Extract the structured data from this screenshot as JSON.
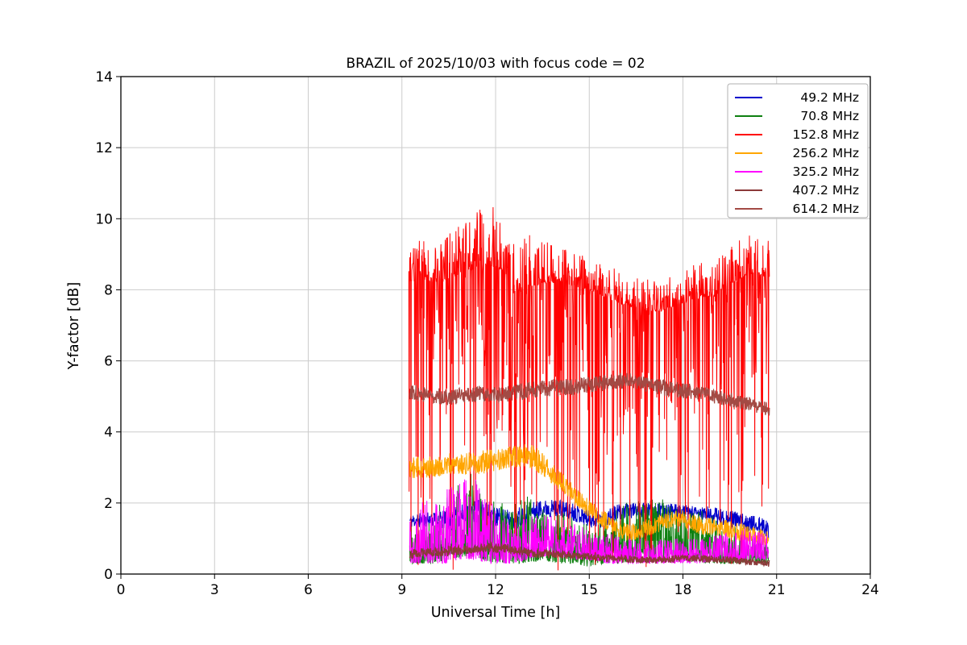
{
  "figure": {
    "background": "#ffffff"
  },
  "chart_data": {
    "type": "line",
    "title": "BRAZIL of 2025/10/03 with focus code = 02",
    "xlabel": "Universal Time [h]",
    "ylabel": "Y-factor [dB]",
    "xlim": [
      0,
      24
    ],
    "ylim": [
      0,
      14
    ],
    "xticks": [
      0,
      3,
      6,
      9,
      12,
      15,
      18,
      21,
      24
    ],
    "yticks": [
      0,
      2,
      4,
      6,
      8,
      10,
      12,
      14
    ],
    "grid": true,
    "grid_color": "#cccccc",
    "legend_position": "upper right",
    "series": [
      {
        "name": "49.2 MHz",
        "color": "#0000cc",
        "x_start": 9.25,
        "x_end": 20.75,
        "step": 0.01,
        "seed": 11,
        "bias": 1.0,
        "spike_prob": 0,
        "spike_max": 0,
        "mid_prob": 0,
        "mid_depth": 0,
        "width": 1.0,
        "envelope": [
          [
            9.3,
            1.3,
            1.7
          ],
          [
            10,
            1.3,
            1.75
          ],
          [
            10.5,
            1.2,
            1.8
          ],
          [
            11,
            1.4,
            2.0
          ],
          [
            11.5,
            1.5,
            2.1
          ],
          [
            12,
            1.3,
            1.9
          ],
          [
            12.5,
            1.2,
            1.8
          ],
          [
            13,
            1.4,
            2.0
          ],
          [
            13.5,
            1.6,
            2.1
          ],
          [
            14,
            1.6,
            2.1
          ],
          [
            14.5,
            1.5,
            2.0
          ],
          [
            15,
            1.3,
            1.8
          ],
          [
            15.5,
            1.3,
            1.8
          ],
          [
            16,
            1.5,
            2.0
          ],
          [
            16.5,
            1.6,
            2.0
          ],
          [
            17,
            1.6,
            2.0
          ],
          [
            17.5,
            1.5,
            2.0
          ],
          [
            18,
            1.5,
            1.95
          ],
          [
            18.5,
            1.5,
            1.9
          ],
          [
            19,
            1.4,
            1.9
          ],
          [
            19.5,
            1.3,
            1.8
          ],
          [
            20,
            1.2,
            1.7
          ],
          [
            20.5,
            1.1,
            1.6
          ],
          [
            20.75,
            1.0,
            1.5
          ]
        ]
      },
      {
        "name": "70.8 MHz",
        "color": "#0e8010",
        "x_start": 9.25,
        "x_end": 20.75,
        "step": 0.01,
        "seed": 22,
        "bias": 2.0,
        "spike_prob": 0,
        "spike_max": 0,
        "mid_prob": 0,
        "mid_depth": 0,
        "width": 1.0,
        "envelope": [
          [
            9.3,
            0.3,
            1.6
          ],
          [
            10,
            0.3,
            1.8
          ],
          [
            10.5,
            0.4,
            2.2
          ],
          [
            11,
            0.5,
            2.8
          ],
          [
            11.3,
            0.5,
            2.9
          ],
          [
            11.6,
            0.4,
            2.6
          ],
          [
            12,
            0.3,
            2.2
          ],
          [
            12.5,
            0.3,
            2.0
          ],
          [
            13,
            0.3,
            2.2
          ],
          [
            13.5,
            0.4,
            2.0
          ],
          [
            14,
            0.3,
            1.8
          ],
          [
            14.5,
            0.3,
            1.6
          ],
          [
            15,
            0.2,
            1.4
          ],
          [
            15.5,
            0.3,
            1.6
          ],
          [
            16,
            0.3,
            2.0
          ],
          [
            16.5,
            0.4,
            2.2
          ],
          [
            17,
            0.4,
            2.2
          ],
          [
            17.5,
            0.4,
            2.2
          ],
          [
            18,
            0.4,
            2.1
          ],
          [
            18.5,
            0.3,
            1.9
          ],
          [
            19,
            0.3,
            1.6
          ],
          [
            19.5,
            0.3,
            1.4
          ],
          [
            20,
            0.3,
            1.2
          ],
          [
            20.5,
            0.3,
            1.0
          ],
          [
            20.75,
            0.3,
            0.9
          ]
        ]
      },
      {
        "name": "152.8 MHz",
        "color": "#ff0000",
        "x_start": 9.22,
        "x_end": 20.78,
        "step": 0.01,
        "seed": 33,
        "bias": 2.2,
        "spike_prob": 0.13,
        "spike_max": 5.2,
        "mid_prob": 0.22,
        "mid_depth": 3.2,
        "width": 1.0,
        "envelope": [
          [
            9.3,
            8.2,
            9.4
          ],
          [
            9.6,
            8.3,
            9.5
          ],
          [
            10,
            8.2,
            9.5
          ],
          [
            10.5,
            8.3,
            9.6
          ],
          [
            11,
            8.5,
            9.9
          ],
          [
            11.5,
            8.6,
            10.3
          ],
          [
            11.8,
            8.7,
            10.5
          ],
          [
            12,
            8.6,
            10.4
          ],
          [
            12.3,
            8.5,
            10.0
          ],
          [
            12.6,
            7.8,
            9.7
          ],
          [
            13,
            8.0,
            9.6
          ],
          [
            13.5,
            8.2,
            9.4
          ],
          [
            14,
            8.2,
            9.2
          ],
          [
            14.5,
            8.1,
            9.1
          ],
          [
            15,
            8.0,
            9.0
          ],
          [
            15.5,
            7.8,
            8.8
          ],
          [
            16,
            7.6,
            8.5
          ],
          [
            16.5,
            7.5,
            8.4
          ],
          [
            17,
            7.4,
            8.3
          ],
          [
            17.3,
            7.4,
            8.2
          ],
          [
            17.6,
            7.5,
            8.4
          ],
          [
            18,
            7.6,
            8.6
          ],
          [
            18.5,
            7.8,
            8.8
          ],
          [
            19,
            7.8,
            8.8
          ],
          [
            19.3,
            8.0,
            9.0
          ],
          [
            19.6,
            8.2,
            9.3
          ],
          [
            20,
            8.4,
            9.5
          ],
          [
            20.3,
            8.5,
            9.6
          ],
          [
            20.5,
            8.4,
            9.4
          ],
          [
            20.78,
            8.3,
            9.4
          ]
        ]
      },
      {
        "name": "256.2 MHz",
        "color": "#ffa500",
        "x_start": 9.25,
        "x_end": 20.75,
        "step": 0.01,
        "seed": 44,
        "bias": 1.2,
        "spike_prob": 0,
        "spike_max": 0,
        "mid_prob": 0,
        "mid_depth": 0,
        "width": 1.0,
        "envelope": [
          [
            9.3,
            2.7,
            3.3
          ],
          [
            10,
            2.7,
            3.3
          ],
          [
            10.5,
            2.8,
            3.4
          ],
          [
            11,
            2.8,
            3.4
          ],
          [
            11.5,
            2.8,
            3.5
          ],
          [
            12,
            2.9,
            3.5
          ],
          [
            12.5,
            3.0,
            3.6
          ],
          [
            13,
            3.0,
            3.7
          ],
          [
            13.3,
            2.9,
            3.6
          ],
          [
            13.6,
            2.7,
            3.3
          ],
          [
            14,
            2.4,
            3.0
          ],
          [
            14.3,
            2.2,
            2.7
          ],
          [
            14.6,
            1.9,
            2.4
          ],
          [
            15,
            1.6,
            2.1
          ],
          [
            15.3,
            1.4,
            1.9
          ],
          [
            15.6,
            1.2,
            1.7
          ],
          [
            16,
            1.0,
            1.5
          ],
          [
            16.3,
            0.9,
            1.4
          ],
          [
            16.6,
            1.0,
            1.5
          ],
          [
            17,
            1.1,
            1.6
          ],
          [
            17.3,
            1.2,
            1.7
          ],
          [
            17.6,
            1.3,
            1.8
          ],
          [
            18,
            1.3,
            1.8
          ],
          [
            18.3,
            1.2,
            1.7
          ],
          [
            18.6,
            1.1,
            1.6
          ],
          [
            19,
            1.1,
            1.6
          ],
          [
            19.5,
            1.0,
            1.5
          ],
          [
            20,
            0.9,
            1.4
          ],
          [
            20.5,
            0.8,
            1.3
          ],
          [
            20.75,
            0.8,
            1.2
          ]
        ]
      },
      {
        "name": "325.2 MHz",
        "color": "#ff00ff",
        "x_start": 9.25,
        "x_end": 20.75,
        "step": 0.01,
        "seed": 55,
        "bias": 1.8,
        "spike_prob": 0,
        "spike_max": 0,
        "mid_prob": 0,
        "mid_depth": 0,
        "width": 1.0,
        "envelope": [
          [
            9.3,
            0.3,
            1.8
          ],
          [
            9.6,
            0.3,
            2.0
          ],
          [
            10,
            0.3,
            2.2
          ],
          [
            10.4,
            0.3,
            2.4
          ],
          [
            10.8,
            0.4,
            2.7
          ],
          [
            11.1,
            0.4,
            2.9
          ],
          [
            11.4,
            0.4,
            2.7
          ],
          [
            11.7,
            0.3,
            2.3
          ],
          [
            12,
            0.3,
            1.8
          ],
          [
            12.5,
            0.3,
            1.5
          ],
          [
            13,
            0.4,
            1.6
          ],
          [
            13.5,
            0.5,
            1.7
          ],
          [
            14,
            0.5,
            1.6
          ],
          [
            14.5,
            0.4,
            1.5
          ],
          [
            15,
            0.4,
            1.3
          ],
          [
            15.5,
            0.3,
            1.2
          ],
          [
            16,
            0.3,
            1.1
          ],
          [
            16.5,
            0.3,
            1.0
          ],
          [
            17,
            0.3,
            1.0
          ],
          [
            17.5,
            0.3,
            1.0
          ],
          [
            18,
            0.3,
            1.0
          ],
          [
            18.5,
            0.3,
            1.0
          ],
          [
            19,
            0.4,
            1.1
          ],
          [
            19.5,
            0.4,
            1.2
          ],
          [
            20,
            0.4,
            1.3
          ],
          [
            20.5,
            0.4,
            1.2
          ],
          [
            20.75,
            0.4,
            1.1
          ]
        ]
      },
      {
        "name": "407.2 MHz",
        "color": "#8b3a3a",
        "x_start": 9.25,
        "x_end": 20.78,
        "step": 0.01,
        "seed": 66,
        "bias": 1.0,
        "spike_prob": 0,
        "spike_max": 0,
        "mid_prob": 0,
        "mid_depth": 0,
        "width": 1.3,
        "envelope": [
          [
            9.3,
            0.45,
            0.7
          ],
          [
            10,
            0.5,
            0.75
          ],
          [
            10.5,
            0.5,
            0.8
          ],
          [
            11,
            0.55,
            0.8
          ],
          [
            11.5,
            0.6,
            0.85
          ],
          [
            12,
            0.6,
            0.9
          ],
          [
            12.3,
            0.6,
            0.85
          ],
          [
            12.6,
            0.55,
            0.8
          ],
          [
            13,
            0.5,
            0.75
          ],
          [
            13.5,
            0.45,
            0.7
          ],
          [
            14,
            0.45,
            0.65
          ],
          [
            14.5,
            0.4,
            0.6
          ],
          [
            15,
            0.4,
            0.6
          ],
          [
            15.5,
            0.35,
            0.55
          ],
          [
            16,
            0.35,
            0.55
          ],
          [
            16.5,
            0.3,
            0.5
          ],
          [
            17,
            0.3,
            0.5
          ],
          [
            17.5,
            0.3,
            0.5
          ],
          [
            18,
            0.35,
            0.55
          ],
          [
            18.5,
            0.35,
            0.55
          ],
          [
            19,
            0.3,
            0.5
          ],
          [
            19.5,
            0.3,
            0.5
          ],
          [
            20,
            0.25,
            0.45
          ],
          [
            20.5,
            0.25,
            0.4
          ],
          [
            20.78,
            0.2,
            0.4
          ]
        ]
      },
      {
        "name": "614.2 MHz",
        "color": "#a34a44",
        "x_start": 9.25,
        "x_end": 20.78,
        "step": 0.01,
        "seed": 77,
        "bias": 1.0,
        "spike_prob": 0,
        "spike_max": 0,
        "mid_prob": 0,
        "mid_depth": 0,
        "width": 1.3,
        "envelope": [
          [
            9.3,
            4.9,
            5.35
          ],
          [
            10,
            4.8,
            5.25
          ],
          [
            10.5,
            4.75,
            5.2
          ],
          [
            11,
            4.8,
            5.25
          ],
          [
            11.5,
            4.85,
            5.3
          ],
          [
            12,
            4.8,
            5.25
          ],
          [
            12.5,
            4.85,
            5.3
          ],
          [
            13,
            4.9,
            5.4
          ],
          [
            13.5,
            5.0,
            5.45
          ],
          [
            14,
            5.0,
            5.5
          ],
          [
            14.5,
            5.05,
            5.5
          ],
          [
            15,
            5.1,
            5.55
          ],
          [
            15.5,
            5.15,
            5.6
          ],
          [
            16,
            5.2,
            5.65
          ],
          [
            16.3,
            5.25,
            5.7
          ],
          [
            16.6,
            5.2,
            5.6
          ],
          [
            17,
            5.1,
            5.5
          ],
          [
            17.5,
            5.0,
            5.45
          ],
          [
            18,
            4.95,
            5.4
          ],
          [
            18.5,
            4.9,
            5.3
          ],
          [
            19,
            4.8,
            5.2
          ],
          [
            19.5,
            4.7,
            5.1
          ],
          [
            20,
            4.6,
            5.0
          ],
          [
            20.5,
            4.5,
            4.9
          ],
          [
            20.78,
            4.45,
            4.85
          ]
        ]
      }
    ]
  }
}
